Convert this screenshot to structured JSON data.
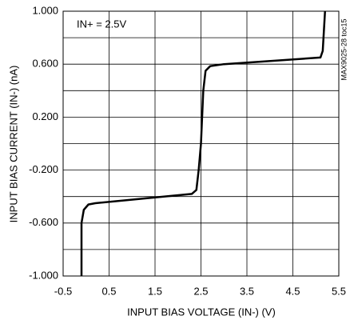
{
  "chart_data": {
    "type": "line",
    "x_label": "INPUT BIAS VOLTAGE (IN-) (V)",
    "y_label": "INPUT BIAS CURRENT (IN-) (nA)",
    "annotation": "IN+ = 2.5V",
    "side_note": "MAX9025-28 toc15",
    "x": [
      -0.1,
      -0.1,
      -0.05,
      0.05,
      0.2,
      2.3,
      2.4,
      2.45,
      2.5,
      2.55,
      2.6,
      2.7,
      3.0,
      5.1,
      5.15,
      5.2
    ],
    "series": [
      {
        "color": "#000000",
        "values": [
          -1.0,
          -0.6,
          -0.5,
          -0.46,
          -0.45,
          -0.38,
          -0.35,
          -0.2,
          0.0,
          0.4,
          0.55,
          0.585,
          0.6,
          0.65,
          0.7,
          1.0
        ]
      }
    ],
    "xlim": [
      -0.5,
      5.5
    ],
    "xticks": [
      -0.5,
      0.5,
      1.5,
      2.5,
      3.5,
      4.5,
      5.5
    ],
    "ylim": [
      -1.0,
      1.0
    ],
    "yticks": [
      {
        "value": 1.0,
        "label": "1.000"
      },
      {
        "value": 0.6,
        "label": "0.600"
      },
      {
        "value": 0.2,
        "label": "0.200"
      },
      {
        "value": -0.2,
        "label": "-0.200"
      },
      {
        "value": -0.6,
        "label": "-0.600"
      },
      {
        "value": -1.0,
        "label": "-1.000"
      }
    ],
    "y_minor_grid": [
      0.8,
      0.4,
      0.0,
      -0.4,
      -0.8
    ],
    "grid": true
  }
}
